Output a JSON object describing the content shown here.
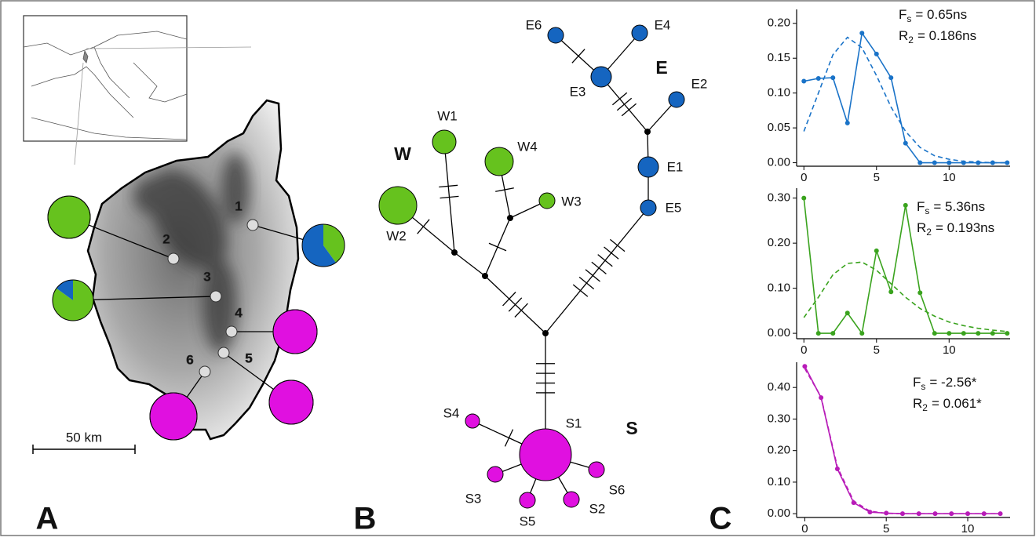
{
  "panel_a": {
    "letter": "A",
    "scale_bar": "50 km",
    "colors": [
      "#66c21e",
      "#1565c0",
      "#e010e0"
    ],
    "sites": [
      {
        "label": "1",
        "composition": [
          0.4,
          0.6,
          0
        ]
      },
      {
        "label": "2",
        "composition": [
          1,
          0,
          0
        ]
      },
      {
        "label": "3",
        "composition": [
          0.85,
          0.15,
          0
        ]
      },
      {
        "label": "4",
        "composition": [
          0,
          0,
          1
        ]
      },
      {
        "label": "5",
        "composition": [
          0,
          0,
          1
        ]
      },
      {
        "label": "6",
        "composition": [
          0,
          0,
          1
        ]
      }
    ]
  },
  "panel_b": {
    "letter": "B",
    "groups": [
      "W",
      "E",
      "S"
    ],
    "nodes": [
      "W1",
      "W2",
      "W3",
      "W4",
      "E1",
      "E2",
      "E3",
      "E4",
      "E5",
      "E6",
      "S1",
      "S2",
      "S3",
      "S4",
      "S5",
      "S6"
    ]
  },
  "panel_c": {
    "letter": "C"
  },
  "chart_data": [
    {
      "type": "line",
      "x": [
        0,
        1,
        2,
        3,
        4,
        5,
        6,
        7,
        8,
        9,
        10,
        11,
        12,
        13,
        14
      ],
      "series": [
        {
          "color": "#1a73c8",
          "style": "solid",
          "values": [
            0.117,
            0.121,
            0.122,
            0.057,
            0.186,
            0.156,
            0.122,
            0.028,
            0,
            0,
            0,
            0,
            0,
            0,
            0
          ]
        },
        {
          "color": "#1a73c8",
          "style": "dashed",
          "values": [
            0.045,
            0.1,
            0.155,
            0.18,
            0.165,
            0.125,
            0.08,
            0.045,
            0.022,
            0.01,
            0.005,
            0.002,
            0.001,
            0,
            0
          ]
        }
      ],
      "xlim": [
        -0.5,
        14.2
      ],
      "ylim": [
        -0.005,
        0.22
      ],
      "xticks": [
        0,
        5,
        10
      ],
      "yticks": [
        {
          "value": 0,
          "label": "0.00"
        },
        {
          "value": 0.05,
          "label": "0.05"
        },
        {
          "value": 0.1,
          "label": "0.10"
        },
        {
          "value": 0.15,
          "label": "0.15"
        },
        {
          "value": 0.2,
          "label": "0.20"
        }
      ],
      "annotations": [
        {
          "symbol": "F",
          "subscript": "s",
          "text": "= 0.65ns"
        },
        {
          "symbol": "R",
          "subscript": "2",
          "text": "= 0.186ns"
        }
      ]
    },
    {
      "type": "line",
      "x": [
        0,
        1,
        2,
        3,
        4,
        5,
        6,
        7,
        8,
        9,
        10,
        11,
        12,
        13,
        14
      ],
      "series": [
        {
          "color": "#3aa31e",
          "style": "solid",
          "values": [
            0.3,
            0,
            0,
            0.045,
            0,
            0.183,
            0.092,
            0.284,
            0.09,
            0,
            0,
            0,
            0,
            0,
            0
          ]
        },
        {
          "color": "#3aa31e",
          "style": "dashed",
          "values": [
            0.035,
            0.08,
            0.13,
            0.155,
            0.158,
            0.14,
            0.11,
            0.08,
            0.055,
            0.038,
            0.025,
            0.017,
            0.011,
            0.007,
            0.004
          ]
        }
      ],
      "xlim": [
        -0.5,
        14.2
      ],
      "ylim": [
        -0.012,
        0.322
      ],
      "xticks": [
        0,
        5,
        10
      ],
      "yticks": [
        {
          "value": 0,
          "label": "0.00"
        },
        {
          "value": 0.1,
          "label": "0.10"
        },
        {
          "value": 0.2,
          "label": "0.20"
        },
        {
          "value": 0.3,
          "label": "0.30"
        }
      ],
      "annotations": [
        {
          "symbol": "F",
          "subscript": "s",
          "text": "= 5.36ns"
        },
        {
          "symbol": "R",
          "subscript": "2",
          "text": "= 0.193ns"
        }
      ]
    },
    {
      "type": "line",
      "x": [
        0,
        1,
        2,
        3,
        4,
        5,
        6,
        7,
        8,
        9,
        10,
        11,
        12
      ],
      "series": [
        {
          "color": "#b81cb8",
          "style": "solid",
          "values": [
            0.467,
            0.368,
            0.142,
            0.035,
            0.005,
            0.002,
            0,
            0,
            0,
            0,
            0,
            0,
            0
          ]
        },
        {
          "color": "#b81cb8",
          "style": "dashed",
          "values": [
            0.46,
            0.37,
            0.148,
            0.04,
            0.008,
            0.001,
            0,
            0,
            0,
            0,
            0,
            0,
            0
          ]
        }
      ],
      "xlim": [
        -0.5,
        12.6
      ],
      "ylim": [
        -0.012,
        0.48
      ],
      "xticks": [
        0,
        5,
        10
      ],
      "yticks": [
        {
          "value": 0,
          "label": "0.00"
        },
        {
          "value": 0.1,
          "label": "0.10"
        },
        {
          "value": 0.2,
          "label": "0.20"
        },
        {
          "value": 0.3,
          "label": "0.30"
        },
        {
          "value": 0.4,
          "label": "0.40"
        }
      ],
      "annotations": [
        {
          "symbol": "F",
          "subscript": "s",
          "text": "= -2.56*"
        },
        {
          "symbol": "R",
          "subscript": "2",
          "text": "= 0.061*"
        }
      ]
    }
  ]
}
